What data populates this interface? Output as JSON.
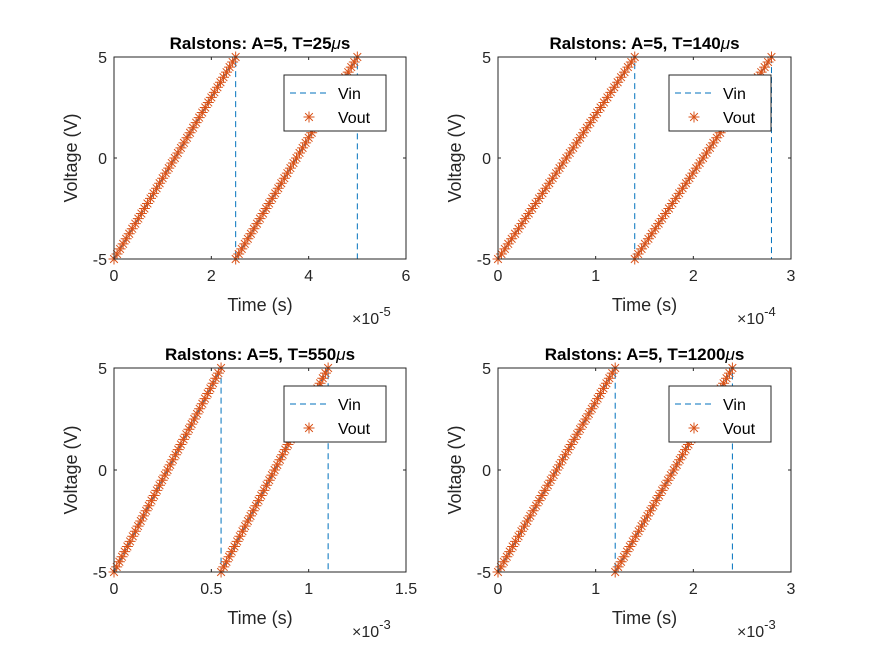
{
  "chart_data": [
    {
      "type": "line",
      "title": "Ralstons: A=5, T=25μs",
      "title_prefix": "Ralstons: A=5, T=25",
      "title_unit_mu": "μ",
      "title_unit_rest": "s",
      "xlabel": "Time (s)",
      "ylabel": "Voltage (V)",
      "x_multiplier": "×10",
      "x_exponent": "-5",
      "xlim": [
        0,
        6e-05
      ],
      "ylim": [
        -5,
        5
      ],
      "xticks": [
        "0",
        "2",
        "4",
        "6"
      ],
      "yticks": [
        "-5",
        "0",
        "5"
      ],
      "xtick_values": [
        0,
        2e-05,
        4e-05,
        6e-05
      ],
      "ytick_values": [
        -5,
        0,
        5
      ],
      "amplitude": 5,
      "period": 2.5e-05,
      "duration": 5e-05,
      "series": [
        {
          "name": "Vin",
          "style": "dashed-line",
          "color": "#0072BD"
        },
        {
          "name": "Vout",
          "style": "asterisk-markers",
          "color": "#D95319"
        }
      ],
      "legend_location": "northeast"
    },
    {
      "type": "line",
      "title": "Ralstons: A=5, T=140μs",
      "title_prefix": "Ralstons: A=5, T=140",
      "title_unit_mu": "μ",
      "title_unit_rest": "s",
      "xlabel": "Time (s)",
      "ylabel": "Voltage (V)",
      "x_multiplier": "×10",
      "x_exponent": "-4",
      "xlim": [
        0,
        0.0003
      ],
      "ylim": [
        -5,
        5
      ],
      "xticks": [
        "0",
        "1",
        "2",
        "3"
      ],
      "yticks": [
        "-5",
        "0",
        "5"
      ],
      "xtick_values": [
        0,
        0.0001,
        0.0002,
        0.0003
      ],
      "ytick_values": [
        -5,
        0,
        5
      ],
      "amplitude": 5,
      "period": 0.00014,
      "duration": 0.00028,
      "series": [
        {
          "name": "Vin",
          "style": "dashed-line",
          "color": "#0072BD"
        },
        {
          "name": "Vout",
          "style": "asterisk-markers",
          "color": "#D95319"
        }
      ],
      "legend_location": "northeast"
    },
    {
      "type": "line",
      "title": "Ralstons: A=5, T=550μs",
      "title_prefix": "Ralstons: A=5, T=550",
      "title_unit_mu": "μ",
      "title_unit_rest": "s",
      "xlabel": "Time (s)",
      "ylabel": "Voltage (V)",
      "x_multiplier": "×10",
      "x_exponent": "-3",
      "xlim": [
        0,
        0.0015
      ],
      "ylim": [
        -5,
        5
      ],
      "xticks": [
        "0",
        "0.5",
        "1",
        "1.5"
      ],
      "yticks": [
        "-5",
        "0",
        "5"
      ],
      "xtick_values": [
        0,
        0.0005,
        0.001,
        0.0015
      ],
      "ytick_values": [
        -5,
        0,
        5
      ],
      "amplitude": 5,
      "period": 0.00055,
      "duration": 0.0011,
      "series": [
        {
          "name": "Vin",
          "style": "dashed-line",
          "color": "#0072BD"
        },
        {
          "name": "Vout",
          "style": "asterisk-markers",
          "color": "#D95319"
        }
      ],
      "legend_location": "northeast"
    },
    {
      "type": "line",
      "title": "Ralstons: A=5, T=1200μs",
      "title_prefix": "Ralstons: A=5, T=1200",
      "title_unit_mu": "μ",
      "title_unit_rest": "s",
      "xlabel": "Time (s)",
      "ylabel": "Voltage (V)",
      "x_multiplier": "×10",
      "x_exponent": "-3",
      "xlim": [
        0,
        0.003
      ],
      "ylim": [
        -5,
        5
      ],
      "xticks": [
        "0",
        "1",
        "2",
        "3"
      ],
      "yticks": [
        "-5",
        "0",
        "5"
      ],
      "xtick_values": [
        0,
        0.001,
        0.002,
        0.003
      ],
      "ytick_values": [
        -5,
        0,
        5
      ],
      "amplitude": 5,
      "period": 0.0012,
      "duration": 0.0024,
      "series": [
        {
          "name": "Vin",
          "style": "dashed-line",
          "color": "#0072BD"
        },
        {
          "name": "Vout",
          "style": "asterisk-markers",
          "color": "#D95319"
        }
      ],
      "legend_location": "northeast"
    }
  ]
}
